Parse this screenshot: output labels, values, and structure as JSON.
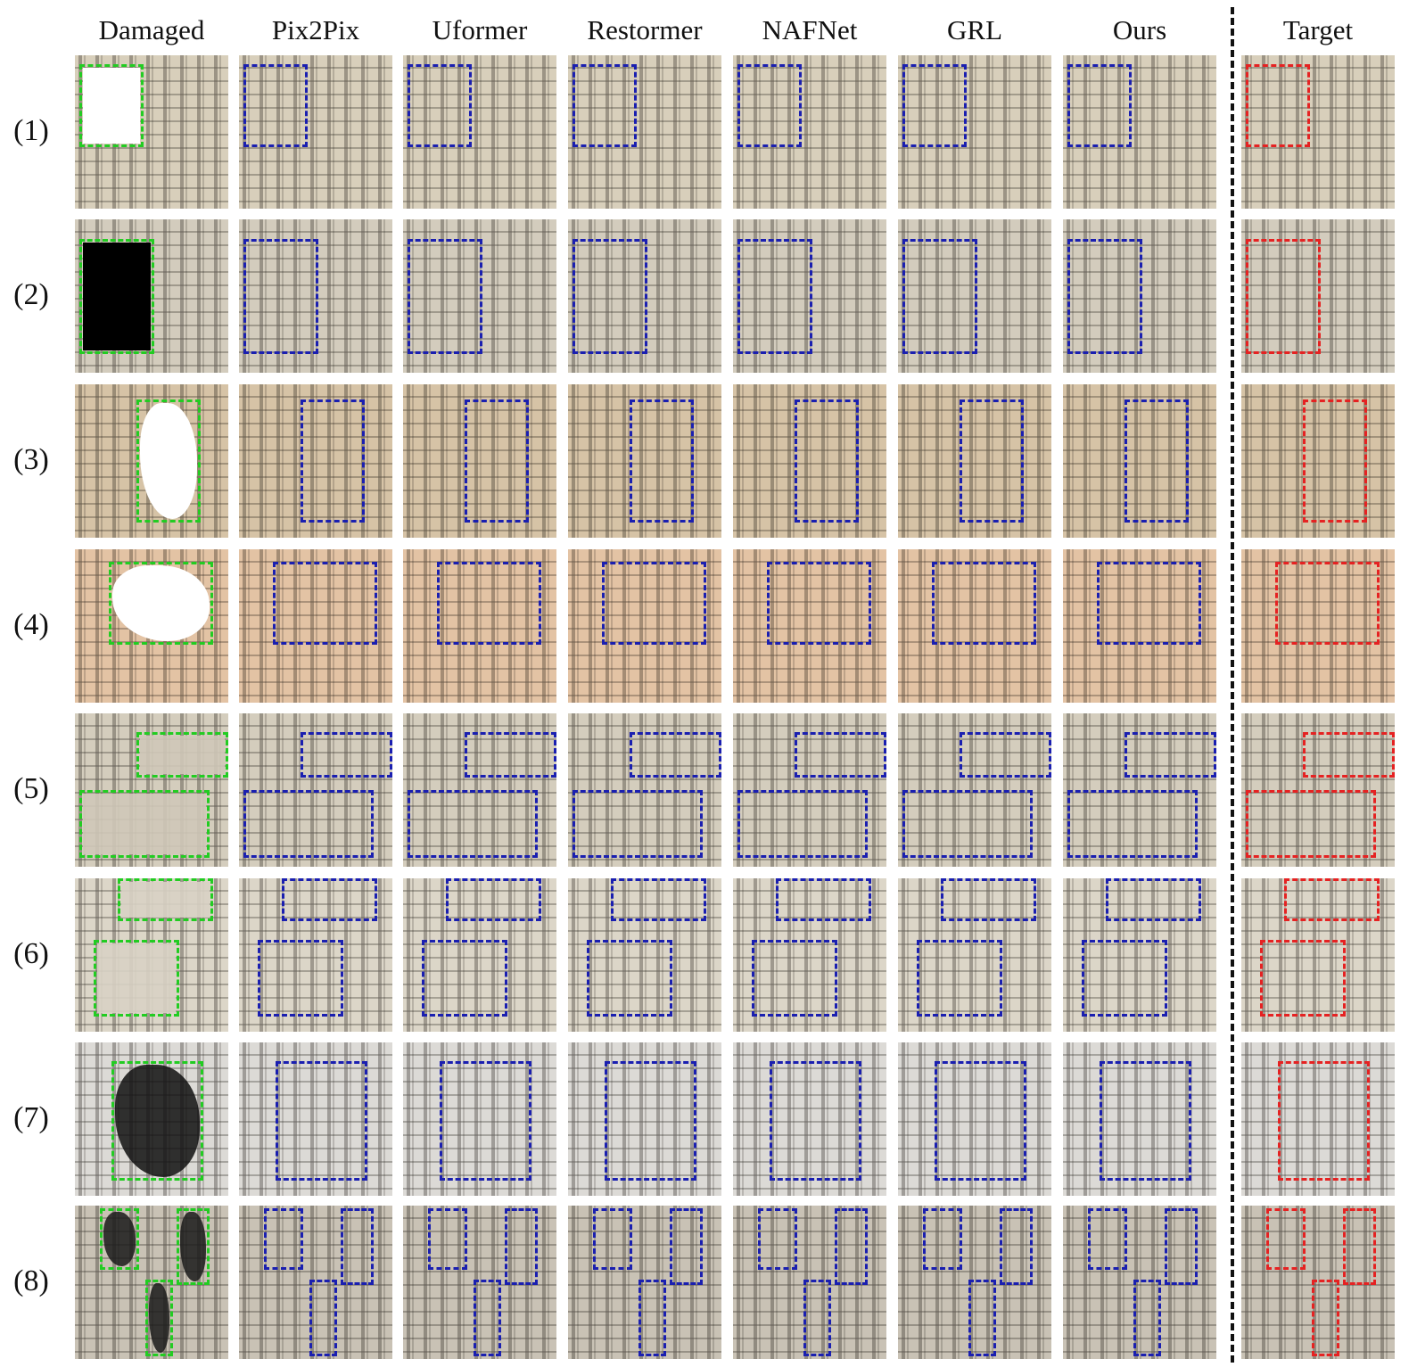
{
  "columns": [
    {
      "label": "Damaged",
      "key": "damaged"
    },
    {
      "label": "Pix2Pix",
      "key": "pix2pix"
    },
    {
      "label": "Uformer",
      "key": "uformer"
    },
    {
      "label": "Restormer",
      "key": "restormer"
    },
    {
      "label": "NAFNet",
      "key": "nafnet"
    },
    {
      "label": "GRL",
      "key": "grl"
    },
    {
      "label": "Ours",
      "key": "ours"
    },
    {
      "label": "Target",
      "key": "target"
    }
  ],
  "rows": [
    {
      "label": "(1)",
      "tone": "#d8cfbb",
      "damage_type": "white-block",
      "damage_color": "#ffffff"
    },
    {
      "label": "(2)",
      "tone": "#d3ccbd",
      "damage_type": "black-block",
      "damage_color": "#000000"
    },
    {
      "label": "(3)",
      "tone": "#d6c3a6",
      "damage_type": "white-blots",
      "damage_color": "#ffffff"
    },
    {
      "label": "(4)",
      "tone": "#e3c3a4",
      "damage_type": "white-blots",
      "damage_color": "#ffffff"
    },
    {
      "label": "(5)",
      "tone": "#d4cdbd",
      "damage_type": "faded",
      "damage_color": "#cfc8b8"
    },
    {
      "label": "(6)",
      "tone": "#dcd6c8",
      "damage_type": "faded",
      "damage_color": "#d8d2c4"
    },
    {
      "label": "(7)",
      "tone": "#dcdad6",
      "damage_type": "black-blots",
      "damage_color": "#111111"
    },
    {
      "label": "(8)",
      "tone": "#c9c2b5",
      "damage_type": "black-blots",
      "damage_color": "#1a1a1a"
    }
  ],
  "box_colors": {
    "damaged": "#22cc22",
    "method": "#1a1fb0",
    "target": "#e52222"
  }
}
